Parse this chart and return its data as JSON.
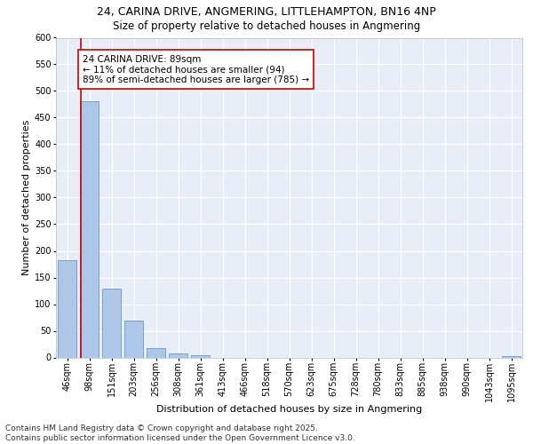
{
  "title_line1": "24, CARINA DRIVE, ANGMERING, LITTLEHAMPTON, BN16 4NP",
  "title_line2": "Size of property relative to detached houses in Angmering",
  "xlabel": "Distribution of detached houses by size in Angmering",
  "ylabel": "Number of detached properties",
  "bar_labels": [
    "46sqm",
    "98sqm",
    "151sqm",
    "203sqm",
    "256sqm",
    "308sqm",
    "361sqm",
    "413sqm",
    "466sqm",
    "518sqm",
    "570sqm",
    "623sqm",
    "675sqm",
    "728sqm",
    "780sqm",
    "833sqm",
    "885sqm",
    "938sqm",
    "990sqm",
    "1043sqm",
    "1095sqm"
  ],
  "bar_values": [
    183,
    480,
    130,
    70,
    18,
    7,
    5,
    0,
    0,
    0,
    0,
    0,
    0,
    0,
    0,
    0,
    0,
    0,
    0,
    0,
    3
  ],
  "bar_color": "#aec6e8",
  "bar_edge_color": "#5b8ec4",
  "vline_color": "#cc0000",
  "annotation_text": "24 CARINA DRIVE: 89sqm\n← 11% of detached houses are smaller (94)\n89% of semi-detached houses are larger (785) →",
  "annotation_box_color": "#ffffff",
  "annotation_box_edge": "#cc0000",
  "ylim": [
    0,
    600
  ],
  "yticks": [
    0,
    50,
    100,
    150,
    200,
    250,
    300,
    350,
    400,
    450,
    500,
    550,
    600
  ],
  "background_color": "#e8eef8",
  "grid_color": "#ffffff",
  "footer_text": "Contains HM Land Registry data © Crown copyright and database right 2025.\nContains public sector information licensed under the Open Government Licence v3.0.",
  "title_fontsize": 9,
  "subtitle_fontsize": 8.5,
  "axis_label_fontsize": 8,
  "tick_fontsize": 7,
  "annotation_fontsize": 7.5,
  "footer_fontsize": 6.5
}
